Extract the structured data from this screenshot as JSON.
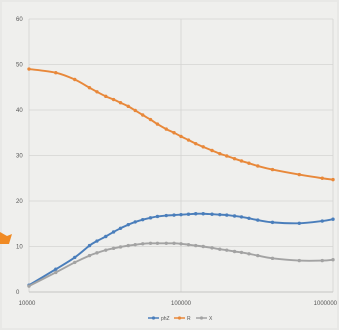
{
  "chart_data": {
    "type": "line",
    "x_scale": "log",
    "xlim": [
      10000,
      1000000
    ],
    "ylim": [
      0,
      60
    ],
    "grid": true,
    "legend_position": "bottom",
    "x_tick_labels": [
      "10000",
      "100000",
      "1000000"
    ],
    "y_tick_labels": [
      "0",
      "10",
      "20",
      "30",
      "40",
      "50",
      "60"
    ],
    "x_ticks": [
      10000,
      100000,
      1000000
    ],
    "y_ticks": [
      0,
      10,
      20,
      30,
      40,
      50,
      60
    ],
    "series": [
      {
        "name": "phZ",
        "color": "#4a7ebb",
        "x": [
          10000,
          15000,
          20000,
          25000,
          28000,
          32000,
          36000,
          40000,
          45000,
          50000,
          56000,
          63000,
          70000,
          80000,
          90000,
          100000,
          112000,
          125000,
          140000,
          160000,
          180000,
          200000,
          225000,
          250000,
          280000,
          320000,
          400000,
          600000,
          850000,
          1000000
        ],
        "y": [
          1.5,
          5.0,
          7.6,
          10.2,
          11.2,
          12.2,
          13.2,
          14.0,
          14.8,
          15.4,
          15.9,
          16.3,
          16.6,
          16.8,
          16.9,
          17.0,
          17.1,
          17.2,
          17.2,
          17.1,
          17.0,
          16.9,
          16.7,
          16.5,
          16.2,
          15.8,
          15.3,
          15.1,
          15.6,
          16.0
        ]
      },
      {
        "name": "R",
        "color": "#e8883a",
        "x": [
          10000,
          15000,
          20000,
          25000,
          28000,
          32000,
          36000,
          40000,
          45000,
          50000,
          56000,
          63000,
          70000,
          80000,
          90000,
          100000,
          112000,
          125000,
          140000,
          160000,
          180000,
          200000,
          225000,
          250000,
          280000,
          320000,
          400000,
          600000,
          850000,
          1000000
        ],
        "y": [
          49.0,
          48.2,
          46.7,
          44.9,
          44.0,
          43.0,
          42.3,
          41.6,
          40.8,
          39.9,
          38.9,
          37.9,
          36.9,
          35.8,
          35.0,
          34.2,
          33.4,
          32.6,
          31.9,
          31.1,
          30.4,
          29.9,
          29.3,
          28.8,
          28.3,
          27.7,
          26.9,
          25.8,
          25.0,
          24.7
        ]
      },
      {
        "name": "X",
        "color": "#a3a3a3",
        "x": [
          10000,
          15000,
          20000,
          25000,
          28000,
          32000,
          36000,
          40000,
          45000,
          50000,
          56000,
          63000,
          70000,
          80000,
          90000,
          100000,
          112000,
          125000,
          140000,
          160000,
          180000,
          200000,
          225000,
          250000,
          280000,
          320000,
          400000,
          600000,
          850000,
          1000000
        ],
        "y": [
          1.3,
          4.3,
          6.5,
          8.0,
          8.6,
          9.2,
          9.6,
          9.9,
          10.2,
          10.4,
          10.6,
          10.7,
          10.7,
          10.7,
          10.7,
          10.6,
          10.4,
          10.2,
          10.0,
          9.7,
          9.4,
          9.2,
          8.9,
          8.7,
          8.4,
          8.0,
          7.4,
          6.9,
          6.9,
          7.1
        ]
      }
    ]
  },
  "decorations": {
    "arrow_color": "#f08a24"
  }
}
